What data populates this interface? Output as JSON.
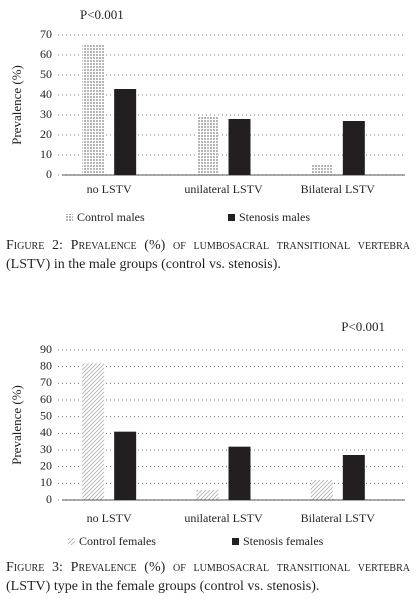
{
  "chart_data": [
    {
      "type": "bar",
      "annotation": "P<0.001",
      "ylabel": "Prevalence (%)",
      "categories": [
        "no LSTV",
        "unilateral LSTV",
        "Bilateral LSTV"
      ],
      "series": [
        {
          "name": "Control males",
          "color": "#000000",
          "pattern": "dots",
          "values": [
            65,
            29,
            5
          ]
        },
        {
          "name": "Stenosis males",
          "color": "#231f20",
          "values": [
            43,
            28,
            27
          ]
        }
      ],
      "ylim": [
        0,
        70
      ],
      "yticks": [
        0,
        10,
        20,
        30,
        40,
        50,
        60,
        70
      ],
      "grid": true,
      "caption": "Figure 2: Prevalence (%) of lumbosacral transitional vertebra (LSTV) in the male groups (control vs. stenosis)."
    },
    {
      "type": "bar",
      "annotation": "P<0.001",
      "ylabel": "Prevalence (%)",
      "categories": [
        "no LSTV",
        "unilateral LSTV",
        "Bilateral LSTV"
      ],
      "series": [
        {
          "name": "Control females",
          "color": "#b0b0b0",
          "pattern": "hatch",
          "values": [
            82,
            6,
            12
          ]
        },
        {
          "name": "Stenosis females",
          "color": "#231f20",
          "values": [
            41,
            32,
            27
          ]
        }
      ],
      "ylim": [
        0,
        90
      ],
      "yticks": [
        0,
        10,
        20,
        30,
        40,
        50,
        60,
        70,
        80,
        90
      ],
      "grid": true,
      "caption": "Figure 3: Prevalence (%) of lumbosacral transitional vertebra (LSTV) type in the female groups (control vs. stenosis)."
    }
  ]
}
